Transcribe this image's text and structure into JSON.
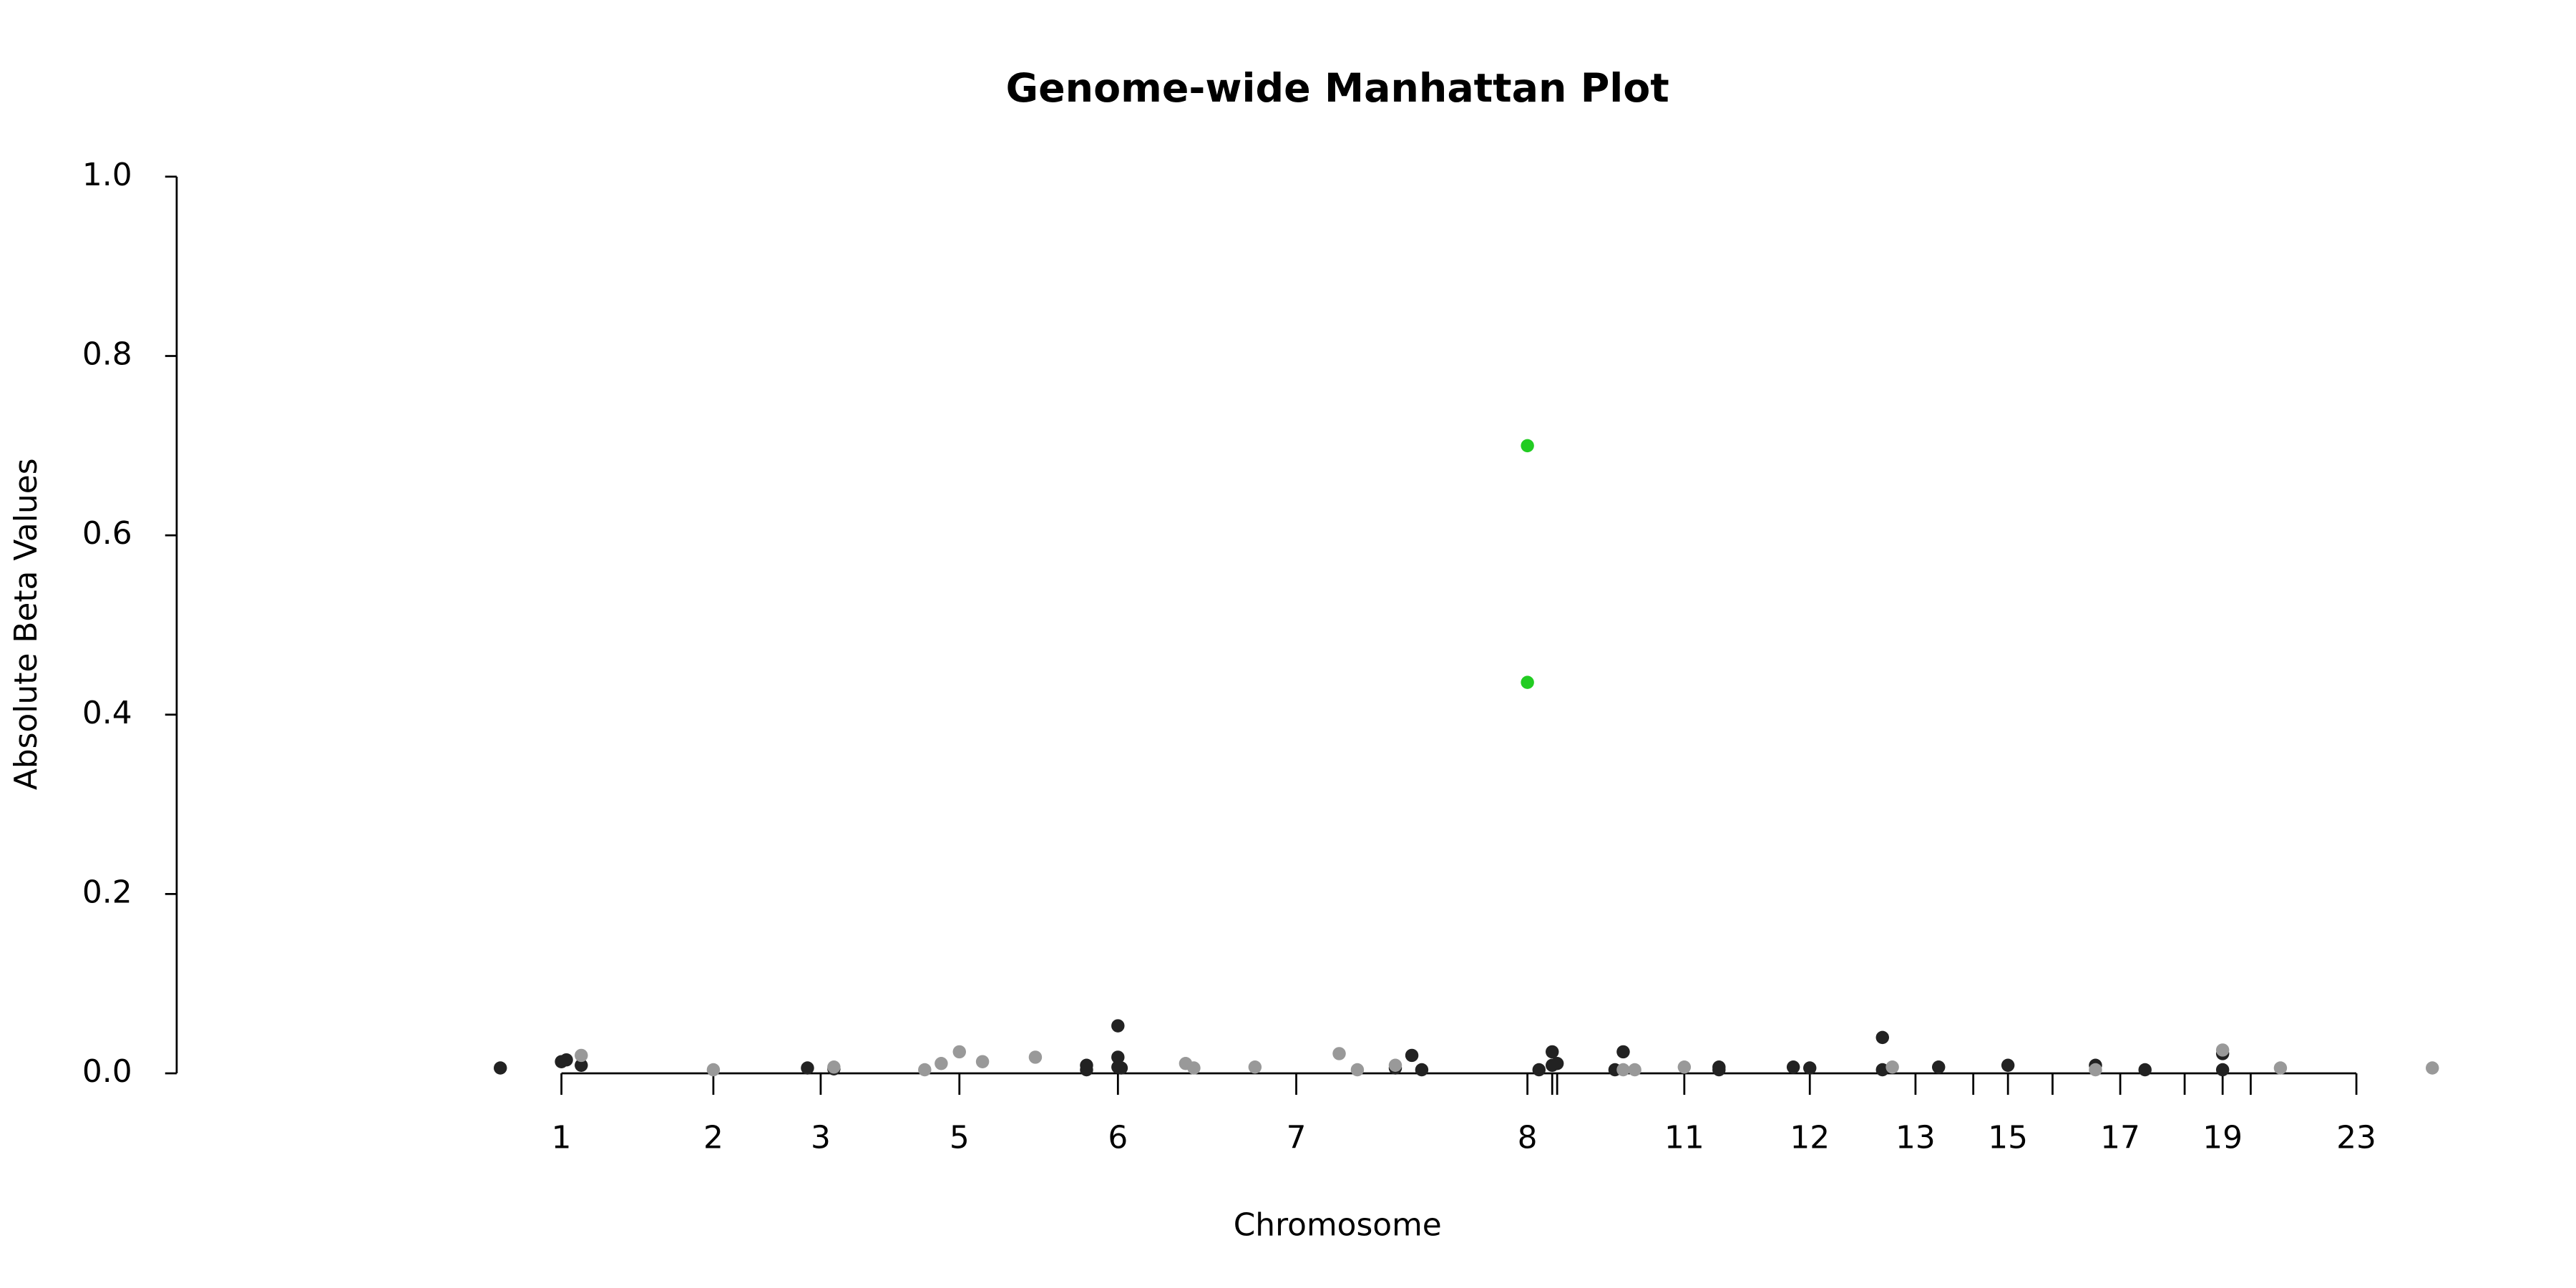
{
  "chart_data": {
    "type": "scatter",
    "title": "Genome-wide Manhattan Plot",
    "xlabel": "Chromosome",
    "ylabel": "Absolute Beta Values",
    "xlim": [
      107,
      1500
    ],
    "ylim": [
      0,
      1
    ],
    "xticks": [
      {
        "value": 340,
        "label": "1"
      },
      {
        "value": 432,
        "label": "2"
      },
      {
        "value": 497,
        "label": "3"
      },
      {
        "value": 581,
        "label": "5"
      },
      {
        "value": 677,
        "label": "6"
      },
      {
        "value": 785,
        "label": "7"
      },
      {
        "value": 925,
        "label": "8"
      },
      {
        "value": 940,
        "label": null
      },
      {
        "value": 943,
        "label": null
      },
      {
        "value": 1020,
        "label": "11"
      },
      {
        "value": 1096,
        "label": "12"
      },
      {
        "value": 1160,
        "label": "13"
      },
      {
        "value": 1195,
        "label": null
      },
      {
        "value": 1216,
        "label": "15"
      },
      {
        "value": 1243,
        "label": null
      },
      {
        "value": 1284,
        "label": "17"
      },
      {
        "value": 1323,
        "label": null
      },
      {
        "value": 1346,
        "label": "19"
      },
      {
        "value": 1363,
        "label": null
      },
      {
        "value": 1427,
        "label": "23"
      }
    ],
    "yticks": [
      {
        "value": 0,
        "label": "0.0"
      },
      {
        "value": 0.2,
        "label": "0.2"
      },
      {
        "value": 0.4,
        "label": "0.4"
      },
      {
        "value": 0.6,
        "label": "0.6"
      },
      {
        "value": 0.8,
        "label": "0.8"
      },
      {
        "value": 1,
        "label": "1.0"
      }
    ],
    "series": [
      {
        "color": "#222222",
        "x": [
          303,
          340,
          343,
          352,
          489,
          505,
          658,
          658,
          677,
          677,
          677,
          679,
          845,
          855,
          861,
          932,
          940,
          940,
          943,
          978,
          983,
          1041,
          1041,
          1086,
          1096,
          1140,
          1140,
          1174,
          1216,
          1269,
          1299,
          1346,
          1346
        ],
        "values": [
          0.006,
          0.013,
          0.015,
          0.009,
          0.006,
          0.005,
          0.009,
          0.004,
          0.053,
          0.018,
          0.007,
          0.006,
          0.006,
          0.02,
          0.004,
          0.004,
          0.024,
          0.009,
          0.011,
          0.004,
          0.024,
          0.007,
          0.004,
          0.007,
          0.006,
          0.04,
          0.004,
          0.007,
          0.009,
          0.009,
          0.004,
          0.022,
          0.004
        ]
      },
      {
        "color": "#999999",
        "x": [
          352,
          432,
          505,
          560,
          570,
          581,
          595,
          627,
          718,
          723,
          760,
          811,
          822,
          845,
          983,
          990,
          1020,
          1146,
          1269,
          1346,
          1381,
          1473
        ],
        "values": [
          0.02,
          0.004,
          0.007,
          0.004,
          0.011,
          0.024,
          0.013,
          0.018,
          0.011,
          0.006,
          0.007,
          0.022,
          0.004,
          0.009,
          0.004,
          0.004,
          0.007,
          0.007,
          0.004,
          0.026,
          0.006,
          0.006
        ]
      },
      {
        "color": "#22cc22",
        "x": [
          925,
          925
        ],
        "values": [
          0.7,
          0.436
        ]
      }
    ]
  }
}
